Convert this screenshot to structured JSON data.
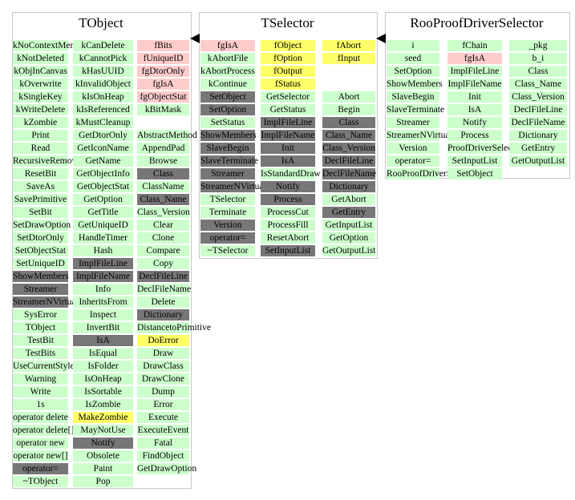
{
  "boxes": [
    {
      "title": "TObject",
      "columns": [
        [
          [
            "kNoContextMenu",
            "g"
          ],
          [
            "kNotDeleted",
            "g"
          ],
          [
            "kObjInCanvas",
            "g"
          ],
          [
            "kOverwrite",
            "g"
          ],
          [
            "kSingleKey",
            "g"
          ],
          [
            "kWriteDelete",
            "g"
          ],
          [
            "kZombie",
            "g"
          ],
          [
            "Print",
            "g"
          ],
          [
            "Read",
            "g"
          ],
          [
            "RecursiveRemove",
            "g"
          ],
          [
            "ResetBit",
            "g"
          ],
          [
            "SaveAs",
            "g"
          ],
          [
            "SavePrimitive",
            "g"
          ],
          [
            "SetBit",
            "g"
          ],
          [
            "SetDrawOption",
            "g"
          ],
          [
            "SetDtorOnly",
            "g"
          ],
          [
            "SetObjectStat",
            "g"
          ],
          [
            "SetUniqueID",
            "g"
          ],
          [
            "ShowMembers",
            "d"
          ],
          [
            "Streamer",
            "d"
          ],
          [
            "StreamerNVirtual",
            "d"
          ],
          [
            "SysError",
            "g"
          ],
          [
            "TObject",
            "g"
          ],
          [
            "TestBit",
            "g"
          ],
          [
            "TestBits",
            "g"
          ],
          [
            "UseCurrentStyle",
            "g"
          ],
          [
            "Warning",
            "g"
          ],
          [
            "Write",
            "g"
          ],
          [
            "1s",
            "g"
          ],
          [
            "operator delete",
            "g"
          ],
          [
            "operator delete[]",
            "g"
          ],
          [
            "operator new",
            "g"
          ],
          [
            "operator new[]",
            "g"
          ],
          [
            "operator=",
            "d"
          ],
          [
            "~TObject",
            "g"
          ]
        ],
        [
          [
            "kCanDelete",
            "g"
          ],
          [
            "kCannotPick",
            "g"
          ],
          [
            "kHasUUID",
            "g"
          ],
          [
            "kInvalidObject",
            "g"
          ],
          [
            "kIsOnHeap",
            "g"
          ],
          [
            "kIsReferenced",
            "g"
          ],
          [
            "kMustCleanup",
            "g"
          ],
          [
            "GetDtorOnly",
            "g"
          ],
          [
            "GetIconName",
            "g"
          ],
          [
            "GetName",
            "g"
          ],
          [
            "GetObjectInfo",
            "g"
          ],
          [
            "GetObjectStat",
            "g"
          ],
          [
            "GetOption",
            "g"
          ],
          [
            "GetTitle",
            "g"
          ],
          [
            "GetUniqueID",
            "g"
          ],
          [
            "HandleTimer",
            "g"
          ],
          [
            "Hash",
            "g"
          ],
          [
            "ImplFileLine",
            "d"
          ],
          [
            "ImplFileName",
            "d"
          ],
          [
            "Info",
            "g"
          ],
          [
            "InheritsFrom",
            "g"
          ],
          [
            "Inspect",
            "g"
          ],
          [
            "InvertBit",
            "g"
          ],
          [
            "IsA",
            "d"
          ],
          [
            "IsEqual",
            "g"
          ],
          [
            "IsFolder",
            "g"
          ],
          [
            "IsOnHeap",
            "g"
          ],
          [
            "IsSortable",
            "g"
          ],
          [
            "IsZombie",
            "g"
          ],
          [
            "MakeZombie",
            "y"
          ],
          [
            "MayNotUse",
            "g"
          ],
          [
            "Notify",
            "d"
          ],
          [
            "Obsolete",
            "g"
          ],
          [
            "Paint",
            "g"
          ],
          [
            "Pop",
            "g"
          ]
        ],
        [
          [
            "fBits",
            "p"
          ],
          [
            "fUniqueID",
            "p"
          ],
          [
            "fgDtorOnly",
            "p"
          ],
          [
            "fgIsA",
            "p"
          ],
          [
            "fgObjectStat",
            "p"
          ],
          [
            "kBitMask",
            "g"
          ],
          [
            "",
            "w"
          ],
          [
            "AbstractMethod",
            "g"
          ],
          [
            "AppendPad",
            "g"
          ],
          [
            "Browse",
            "g"
          ],
          [
            "Class",
            "d"
          ],
          [
            "ClassName",
            "g"
          ],
          [
            "Class_Name",
            "d"
          ],
          [
            "Class_Version",
            "g"
          ],
          [
            "Clear",
            "g"
          ],
          [
            "Clone",
            "g"
          ],
          [
            "Compare",
            "g"
          ],
          [
            "Copy",
            "g"
          ],
          [
            "DeclFileLine",
            "d"
          ],
          [
            "DeclFileName",
            "g"
          ],
          [
            "Delete",
            "g"
          ],
          [
            "Dictionary",
            "d"
          ],
          [
            "DistancetoPrimitive",
            "g"
          ],
          [
            "DoError",
            "y"
          ],
          [
            "Draw",
            "g"
          ],
          [
            "DrawClass",
            "g"
          ],
          [
            "DrawClone",
            "g"
          ],
          [
            "Dump",
            "g"
          ],
          [
            "Error",
            "g"
          ],
          [
            "Execute",
            "g"
          ],
          [
            "ExecuteEvent",
            "g"
          ],
          [
            "Fatal",
            "g"
          ],
          [
            "FindObject",
            "g"
          ],
          [
            "GetDrawOption",
            "g"
          ]
        ]
      ]
    },
    {
      "title": "TSelector",
      "columns": [
        [
          [
            "fgIsA",
            "p"
          ],
          [
            "kAbortFile",
            "g"
          ],
          [
            "kAbortProcess",
            "g"
          ],
          [
            "kContinue",
            "g"
          ],
          [
            "SetObject",
            "d"
          ],
          [
            "SetOption",
            "d"
          ],
          [
            "SetStatus",
            "g"
          ],
          [
            "ShowMembers",
            "d"
          ],
          [
            "SlaveBegin",
            "d"
          ],
          [
            "SlaveTerminate",
            "d"
          ],
          [
            "Streamer",
            "d"
          ],
          [
            "StreamerNVirtual",
            "d"
          ],
          [
            "TSelector",
            "g"
          ],
          [
            "Terminate",
            "g"
          ],
          [
            "Version",
            "d"
          ],
          [
            "operator=",
            "d"
          ],
          [
            "~TSelector",
            "g"
          ]
        ],
        [
          [
            "fObject",
            "y"
          ],
          [
            "fOption",
            "y"
          ],
          [
            "fOutput",
            "y"
          ],
          [
            "fStatus",
            "y"
          ],
          [
            "GetSelector",
            "g"
          ],
          [
            "GetStatus",
            "g"
          ],
          [
            "ImplFileLine",
            "d"
          ],
          [
            "ImplFileName",
            "d"
          ],
          [
            "Init",
            "d"
          ],
          [
            "IsA",
            "d"
          ],
          [
            "IsStandardDraw",
            "g"
          ],
          [
            "Notify",
            "d"
          ],
          [
            "Process",
            "d"
          ],
          [
            "ProcessCut",
            "g"
          ],
          [
            "ProcessFill",
            "g"
          ],
          [
            "ResetAbort",
            "g"
          ],
          [
            "SetInputList",
            "d"
          ]
        ],
        [
          [
            "fAbort",
            "y"
          ],
          [
            "fInput",
            "y"
          ],
          [
            "",
            "w"
          ],
          [
            "",
            "w"
          ],
          [
            "Abort",
            "g"
          ],
          [
            "Begin",
            "g"
          ],
          [
            "Class",
            "d"
          ],
          [
            "Class_Name",
            "d"
          ],
          [
            "Class_Version",
            "d"
          ],
          [
            "DeclFileLine",
            "d"
          ],
          [
            "DeclFileName",
            "d"
          ],
          [
            "Dictionary",
            "d"
          ],
          [
            "GetAbort",
            "g"
          ],
          [
            "GetEntry",
            "d"
          ],
          [
            "GetInputList",
            "g"
          ],
          [
            "GetOption",
            "g"
          ],
          [
            "GetOutputList",
            "g"
          ]
        ]
      ]
    },
    {
      "title": "RooProofDriverSelector",
      "columns": [
        [
          [
            "i",
            "g"
          ],
          [
            "seed",
            "g"
          ],
          [
            "SetOption",
            "g"
          ],
          [
            "ShowMembers",
            "g"
          ],
          [
            "SlaveBegin",
            "g"
          ],
          [
            "SlaveTerminate",
            "g"
          ],
          [
            "Streamer",
            "g"
          ],
          [
            "StreamerNVirtual",
            "g"
          ],
          [
            "Version",
            "g"
          ],
          [
            "operator=",
            "g"
          ],
          [
            "RooProofDriverSelector",
            "g"
          ]
        ],
        [
          [
            "fChain",
            "g"
          ],
          [
            "fgIsA",
            "p"
          ],
          [
            "ImplFileLine",
            "g"
          ],
          [
            "ImplFileName",
            "g"
          ],
          [
            "Init",
            "g"
          ],
          [
            "IsA",
            "g"
          ],
          [
            "Notify",
            "g"
          ],
          [
            "Process",
            "g"
          ],
          [
            "ProofDriverSelector",
            "g"
          ],
          [
            "SetInputList",
            "g"
          ],
          [
            "SetObject",
            "g"
          ]
        ],
        [
          [
            "_pkg",
            "g"
          ],
          [
            "b_i",
            "g"
          ],
          [
            "Class",
            "g"
          ],
          [
            "Class_Name",
            "g"
          ],
          [
            "Class_Version",
            "g"
          ],
          [
            "DeclFileLine",
            "g"
          ],
          [
            "DeclFileName",
            "g"
          ],
          [
            "Dictionary",
            "g"
          ],
          [
            "GetEntry",
            "g"
          ],
          [
            "GetOutputList",
            "g"
          ]
        ]
      ]
    }
  ]
}
